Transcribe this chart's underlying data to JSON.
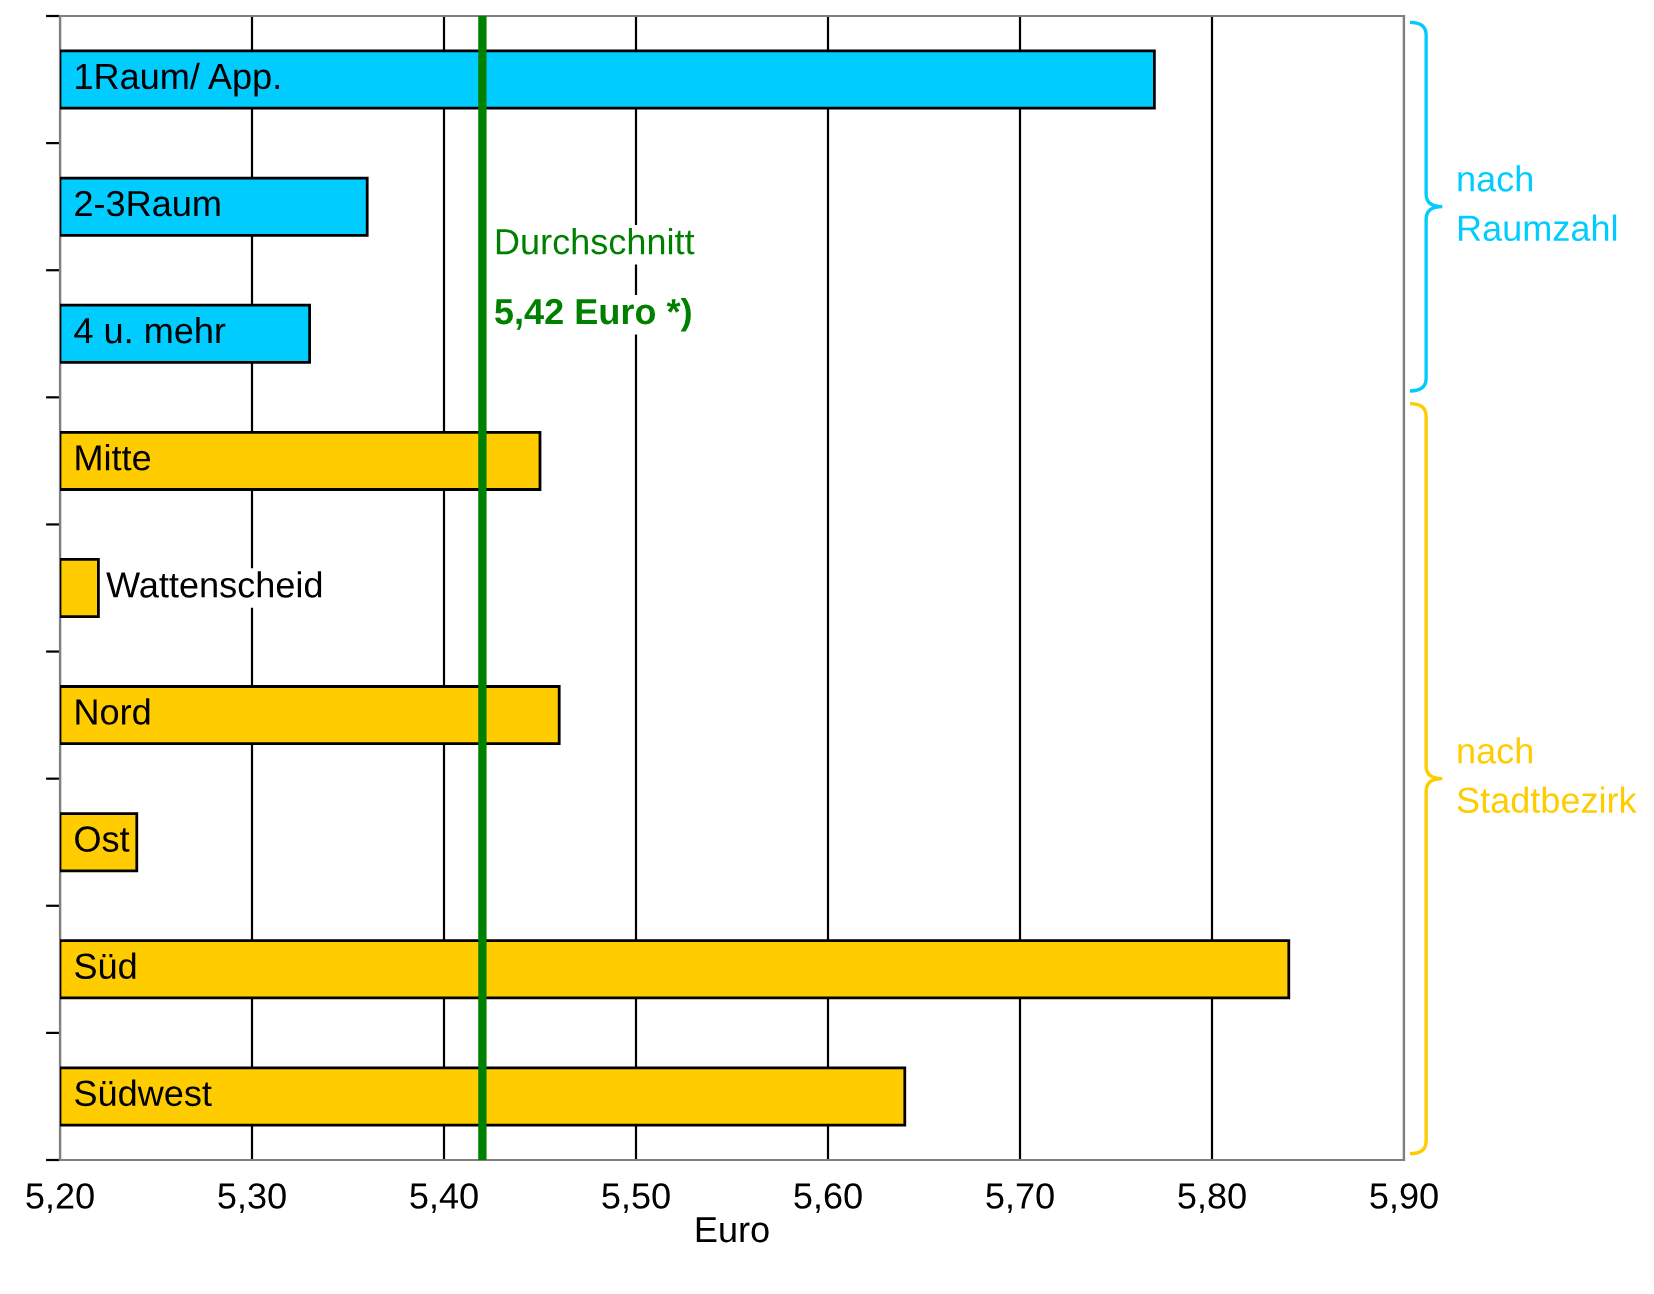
{
  "chart_data": {
    "type": "bar",
    "orientation": "horizontal",
    "xlabel": "Euro",
    "categories": [
      "1Raum/ App.",
      "2-3Raum",
      "4 u. mehr",
      "Mitte",
      "Wattenscheid",
      "Nord",
      "Ost",
      "Süd",
      "Südwest"
    ],
    "values": [
      5.77,
      5.36,
      5.33,
      5.45,
      5.22,
      5.46,
      5.24,
      5.84,
      5.64
    ],
    "colors": [
      "#00ccff",
      "#00ccff",
      "#00ccff",
      "#ffcc00",
      "#ffcc00",
      "#ffcc00",
      "#ffcc00",
      "#ffcc00",
      "#ffcc00"
    ],
    "xlim": [
      5.2,
      5.9
    ],
    "xticks": [
      {
        "value": 5.2,
        "label": "5,20"
      },
      {
        "value": 5.3,
        "label": "5,30"
      },
      {
        "value": 5.4,
        "label": "5,40"
      },
      {
        "value": 5.5,
        "label": "5,50"
      },
      {
        "value": 5.6,
        "label": "5,60"
      },
      {
        "value": 5.7,
        "label": "5,70"
      },
      {
        "value": 5.8,
        "label": "5,80"
      },
      {
        "value": 5.9,
        "label": "5,90"
      }
    ],
    "grid": "x",
    "ref_lines": [
      {
        "axis": "x",
        "value": 5.42,
        "label": "Durchschnitt",
        "color": "#008000"
      }
    ],
    "annotations": [
      "nach Raumzahl",
      "nach Stadtbezirk",
      {
        "text": "5,42 Euro *)",
        "x": 5.42
      }
    ]
  }
}
